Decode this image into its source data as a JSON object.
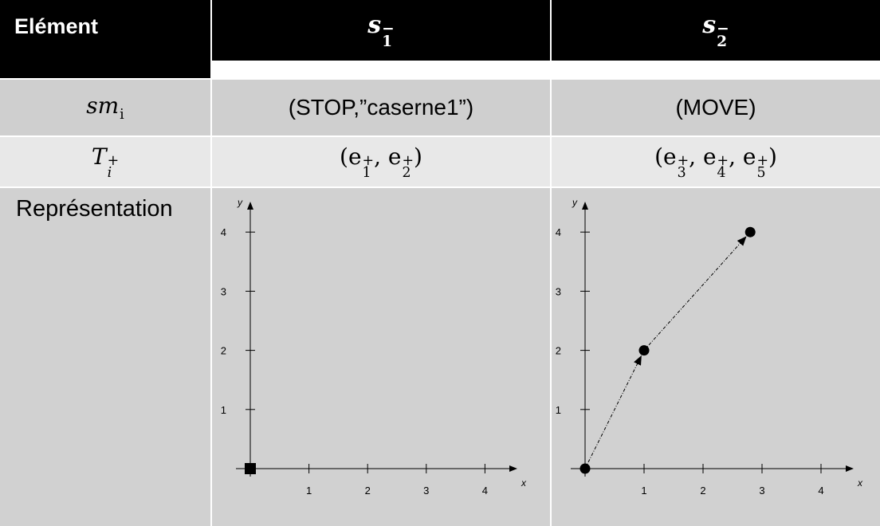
{
  "table": {
    "header": {
      "col1": "Elément",
      "col2_sym": "s",
      "col2_sub": "1",
      "col2_sup": "−",
      "col3_sym": "s",
      "col3_sub": "2",
      "col3_sup": "−"
    },
    "row_sm": {
      "label_sym": "sm",
      "label_sub": "i",
      "col2": "(STOP,”caserne1”)",
      "col3": "(MOVE)"
    },
    "row_t": {
      "label_sym": "T",
      "label_sup": "+",
      "label_sub": "i",
      "col2": {
        "open": "(",
        "items": [
          {
            "sym": "e",
            "sup": "+",
            "sub": "1"
          },
          {
            "sym": "e",
            "sup": "+",
            "sub": "2"
          }
        ],
        "sep": ", ",
        "close": ")"
      },
      "col3": {
        "open": "(",
        "items": [
          {
            "sym": "e",
            "sup": "+",
            "sub": "3"
          },
          {
            "sym": "e",
            "sup": "+",
            "sub": "4"
          },
          {
            "sym": "e",
            "sup": "+",
            "sub": "5"
          }
        ],
        "sep": ", ",
        "close": ")"
      }
    },
    "row_repr": {
      "label": "Représentation"
    }
  },
  "colors": {
    "header_bg": "#000000",
    "header_text": "#ffffff",
    "row1_bg": "#cfcfcf",
    "row2_bg": "#e8e8e8",
    "row3_bg": "#d1d1d1",
    "marker": "#000000"
  },
  "chart_data": [
    {
      "type": "scatter",
      "xlabel": "x",
      "ylabel": "y",
      "xlim": [
        0,
        4.5
      ],
      "ylim": [
        0,
        4.4
      ],
      "xticks": [
        1,
        2,
        3,
        4
      ],
      "yticks": [
        1,
        2,
        3,
        4
      ],
      "grid": false,
      "points": [
        {
          "x": 0,
          "y": 0,
          "marker": "square"
        }
      ],
      "connected": false
    },
    {
      "type": "line",
      "xlabel": "x",
      "ylabel": "y",
      "xlim": [
        0,
        4.5
      ],
      "ylim": [
        0,
        4.4
      ],
      "xticks": [
        1,
        2,
        3,
        4
      ],
      "yticks": [
        1,
        2,
        3,
        4
      ],
      "grid": false,
      "points": [
        {
          "x": 0,
          "y": 0,
          "marker": "circle"
        },
        {
          "x": 1,
          "y": 2,
          "marker": "circle"
        },
        {
          "x": 2.8,
          "y": 4,
          "marker": "circle"
        }
      ],
      "connected": true,
      "line_style": "dash-dot",
      "arrows": true
    }
  ]
}
